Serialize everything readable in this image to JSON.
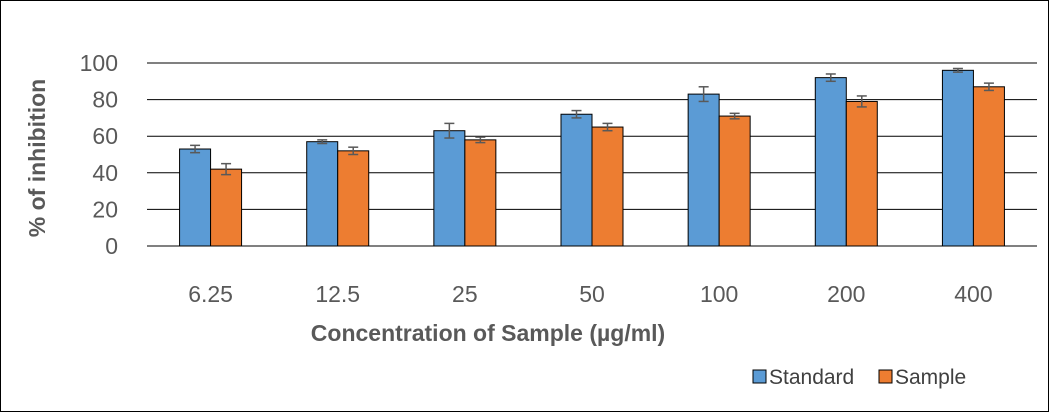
{
  "chart_data": {
    "type": "bar",
    "categories": [
      "6.25",
      "12.5",
      "25",
      "50",
      "100",
      "200",
      "400"
    ],
    "series": [
      {
        "name": "Standard",
        "color": "#5B9BD5",
        "values": [
          53,
          57,
          63,
          72,
          83,
          92,
          96
        ],
        "errors": [
          2,
          1,
          4,
          2,
          4,
          2,
          1
        ]
      },
      {
        "name": "Sample",
        "color": "#ED7D31",
        "values": [
          42,
          52,
          58,
          65,
          71,
          79,
          87
        ],
        "errors": [
          3,
          2,
          1.5,
          2,
          1.5,
          3,
          2
        ]
      }
    ],
    "yticks": [
      "0",
      "20",
      "40",
      "60",
      "80",
      "100"
    ],
    "ylim": [
      0,
      100
    ],
    "xlabel": "Concentration of Sample (µg/ml)",
    "ylabel": "% of inhibition",
    "grid": true,
    "legend_position": "bottom-right"
  }
}
